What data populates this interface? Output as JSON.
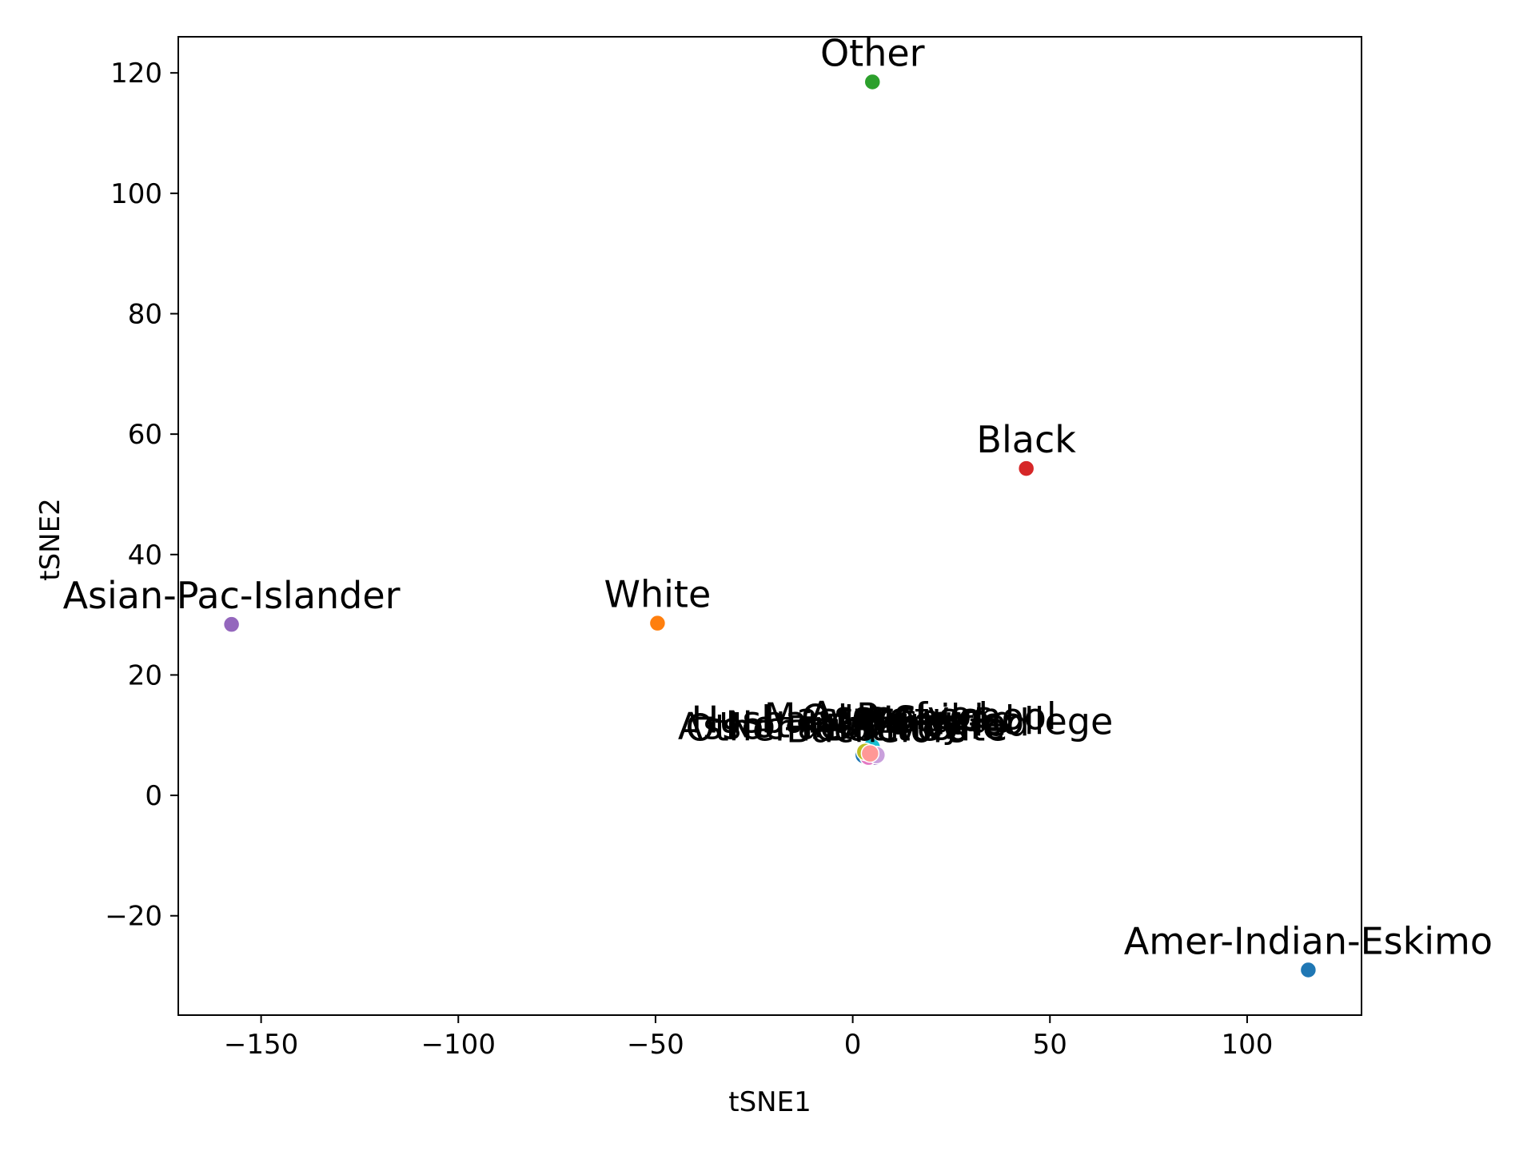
{
  "chart_data": {
    "type": "scatter",
    "title": "",
    "xlabel": "tSNE1",
    "ylabel": "tSNE2",
    "xlim": [
      -171,
      129
    ],
    "ylim": [
      -36.5,
      126
    ],
    "xticks": [
      -150,
      -100,
      -50,
      0,
      50,
      100
    ],
    "yticks": [
      -20,
      0,
      20,
      40,
      60,
      80,
      100,
      120
    ],
    "xtick_labels": [
      "−150",
      "−100",
      "−50",
      "0",
      "50",
      "100"
    ],
    "ytick_labels": [
      "−20",
      "0",
      "20",
      "40",
      "60",
      "80",
      "100",
      "120"
    ],
    "grid": false,
    "legend": "none",
    "points": [
      {
        "label": "Other",
        "x": 5,
        "y": 118.5,
        "color": "#2ca02c"
      },
      {
        "label": "Black",
        "x": 44,
        "y": 54.3,
        "color": "#d62728"
      },
      {
        "label": "White",
        "x": -49.5,
        "y": 28.6,
        "color": "#ff7f0e"
      },
      {
        "label": "Asian-Pac-Islander",
        "x": -157.5,
        "y": 28.4,
        "color": "#9467bd"
      },
      {
        "label": "Amer-Indian-Eskimo",
        "x": 115.5,
        "y": -29,
        "color": "#1f77b4"
      }
    ],
    "cluster": {
      "note_text_visible": "",
      "x": 4,
      "y": 7.5,
      "colors": [
        "#1f77b4",
        "#ff7f0e",
        "#2ca02c",
        "#d62728",
        "#9467bd",
        "#e377c2",
        "#17becf",
        "#bcbd22",
        "#c9a0dc",
        "#ff9896"
      ],
      "overlapping_label_texts": [
        "Husband",
        "Not-in-family",
        "Own-child",
        "Unmarried",
        "Wife",
        "Other-relative",
        "Bachelors",
        "HS-grad",
        "Some-college",
        "Masters",
        "Doctorate",
        "Prof-school",
        "Assoc-acdm",
        "Assoc-voc"
      ]
    }
  }
}
